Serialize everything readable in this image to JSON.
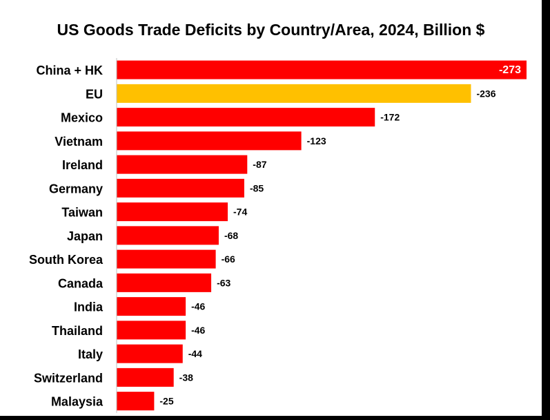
{
  "chart_data": {
    "type": "bar",
    "orientation": "horizontal",
    "title": "US Goods Trade Deficits by Country/Area, 2024, Billion $",
    "categories": [
      "China + HK",
      "EU",
      "Mexico",
      "Vietnam",
      "Ireland",
      "Germany",
      "Taiwan",
      "Japan",
      "South Korea",
      "Canada",
      "India",
      "Thailand",
      "Italy",
      "Switzerland",
      "Malaysia"
    ],
    "values": [
      -273,
      -236,
      -172,
      -123,
      -87,
      -85,
      -74,
      -68,
      -66,
      -63,
      -46,
      -46,
      -44,
      -38,
      -25
    ],
    "value_labels": [
      "-273",
      "-236",
      "-172",
      "-123",
      "-87",
      "-85",
      "-74",
      "-68",
      "-66",
      "-63",
      "-46",
      "-46",
      "-44",
      "-38",
      "-25"
    ],
    "bar_colors": [
      "#ff0000",
      "#ffc000",
      "#ff0000",
      "#ff0000",
      "#ff0000",
      "#ff0000",
      "#ff0000",
      "#ff0000",
      "#ff0000",
      "#ff0000",
      "#ff0000",
      "#ff0000",
      "#ff0000",
      "#ff0000",
      "#ff0000"
    ],
    "label_colors": [
      "#ffffff",
      "#000000",
      "#000000",
      "#000000",
      "#000000",
      "#000000",
      "#000000",
      "#000000",
      "#000000",
      "#000000",
      "#000000",
      "#000000",
      "#000000",
      "#000000",
      "#000000"
    ],
    "xlabel": "",
    "ylabel": "",
    "xlim": [
      0,
      273
    ],
    "grid": false,
    "legend": "none"
  }
}
